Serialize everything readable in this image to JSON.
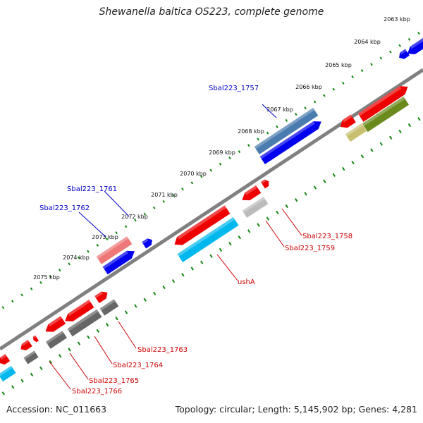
{
  "title": "Shewanella baltica OS223, complete genome",
  "footer": {
    "accession": "Accession: NC_011663",
    "summary": "Topology: circular; Length: 5,145,902 bp; Genes: 4,281"
  },
  "colors": {
    "backbone": "#808080",
    "tick": "#118811",
    "forward_cds": "#ee0000",
    "reverse_cds": "#0000ee",
    "rna_like": "#00b8ee",
    "pseudo_gray": "#666666",
    "light_gray": "#bbbbbb",
    "steel_blue": "#4a7cb0",
    "olive": "#6a8a1e",
    "khaki": "#c8c070",
    "pink": "#ee7777",
    "label_red": "#cc0000",
    "label_blue": "#0000cc"
  },
  "kbp_labels": [
    "2063 kbp",
    "2064 kbp",
    "2065 kbp",
    "2066 kbp",
    "2067 kbp",
    "2068 kbp",
    "2069 kbp",
    "2070 kbp",
    "2071 kbp",
    "2072 kbp",
    "2073 kbp",
    "2074 kbp",
    "2075 kbp"
  ],
  "gene_labels": {
    "sbal223_1757": "Sbal223_1757",
    "sbal223_1761": "Sbal223_1761",
    "sbal223_1762": "Sbal223_1762",
    "sbal223_1758": "Sbal223_1758",
    "sbal223_1759": "Sbal223_1759",
    "usha": "ushA",
    "sbal223_1763": "Sbal223_1763",
    "sbal223_1764": "Sbal223_1764",
    "sbal223_1765": "Sbal223_1765",
    "sbal223_1766": "Sbal223_1766"
  }
}
